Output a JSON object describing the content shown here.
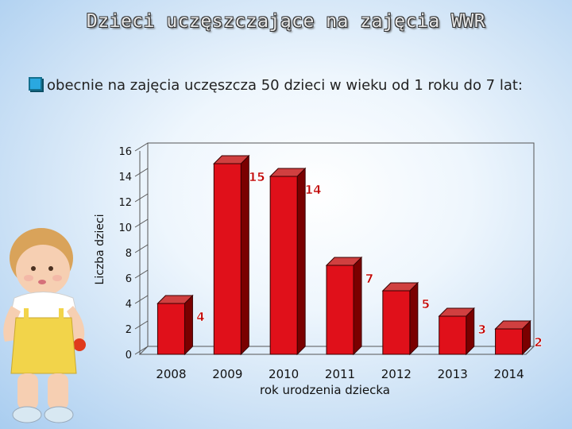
{
  "slide": {
    "title": "Dzieci uczęszczające na zajęcia WWR",
    "bullet": "obecnie na zajęcia uczęszcza 50 dzieci w wieku  od 1 roku do 7 lat:",
    "bullet_icon": "square-bullet-icon",
    "illustration": "toddler-doll-illustration"
  },
  "colors": {
    "bar_front": "#e0101a",
    "bar_side": "#7a0000",
    "bar_top": "#d04040",
    "value_label": "#c00000",
    "bullet_accent": "#2aa8e0"
  },
  "chart_data": {
    "type": "bar",
    "title": "",
    "xlabel": "rok urodzenia dziecka",
    "ylabel": "Liczba dzieci",
    "categories": [
      "2008",
      "2009",
      "2010",
      "2011",
      "2012",
      "2013",
      "2014"
    ],
    "values": [
      4,
      15,
      14,
      7,
      5,
      3,
      2
    ],
    "yticks": [
      "0",
      "2",
      "4",
      "6",
      "8",
      "10",
      "12",
      "14",
      "16"
    ],
    "ylim": [
      0,
      16
    ],
    "grid": false,
    "legend": "none",
    "three_d": true
  }
}
